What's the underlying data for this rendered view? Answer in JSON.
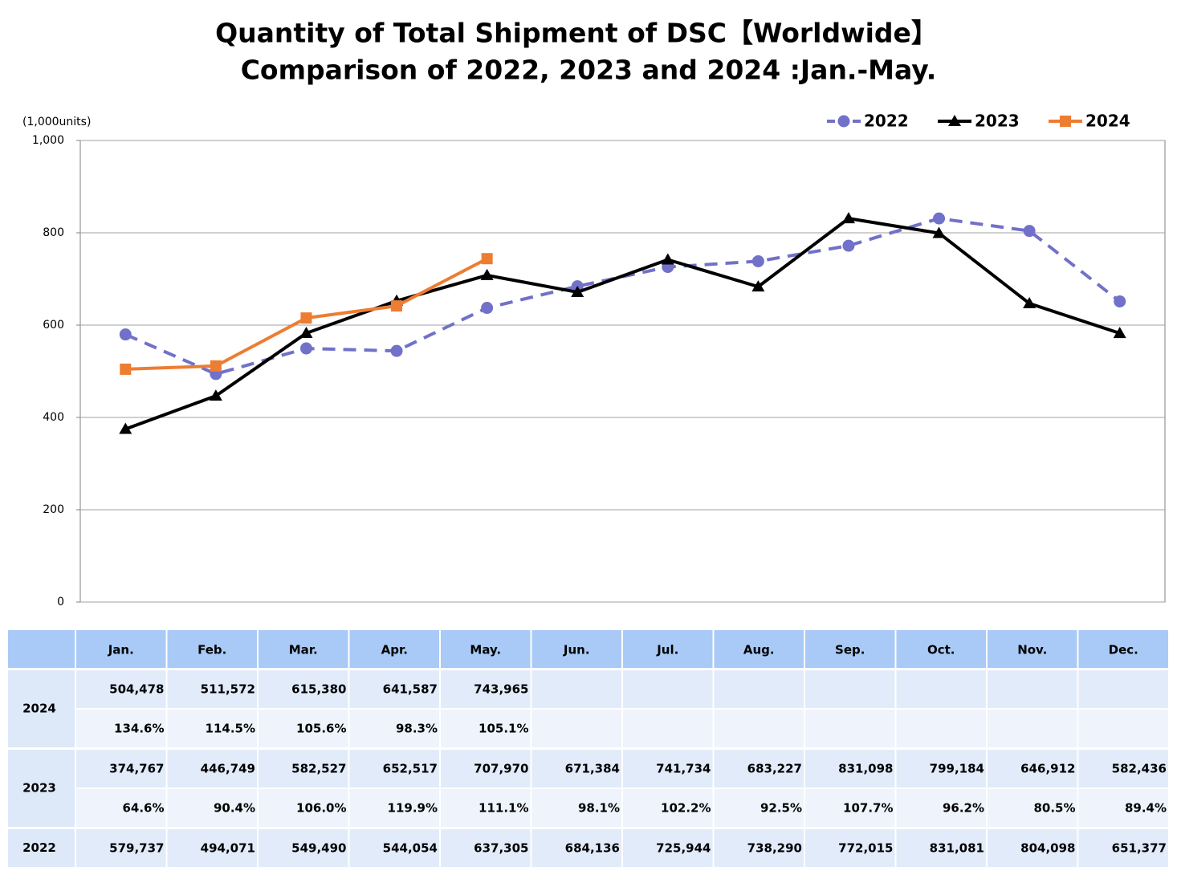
{
  "chart_data": {
    "type": "line",
    "title": "Quantity of Total Shipment of DSC【Worldwide】",
    "subtitle": "Comparison of 2022, 2023 and 2024 :Jan.-May.",
    "y_label": "(1,000units)",
    "categories": [
      "Jan.",
      "Feb.",
      "Mar.",
      "Apr.",
      "May.",
      "Jun.",
      "Jul.",
      "Aug.",
      "Sep.",
      "Oct.",
      "Nov.",
      "Dec."
    ],
    "ylim": [
      0,
      1000
    ],
    "yticks": [
      0,
      200,
      400,
      600,
      800,
      {
        "value": 1000,
        "label": "1,000"
      }
    ],
    "grid": true,
    "legend": "top-right",
    "series": [
      {
        "name": "2022",
        "color": "#7171c9",
        "dash": true,
        "marker": "circle",
        "values": [
          579.737,
          494.071,
          549.49,
          544.054,
          637.305,
          684.136,
          725.944,
          738.29,
          772.015,
          831.081,
          804.098,
          651.377
        ],
        "value_labels": [
          "579,737",
          "494,071",
          "549,490",
          "544,054",
          "637,305",
          "684,136",
          "725,944",
          "738,290",
          "772,015",
          "831,081",
          "804,098",
          "651,377"
        ]
      },
      {
        "name": "2023",
        "color": "#000000",
        "dash": false,
        "marker": "triangle",
        "values": [
          374.767,
          446.749,
          582.527,
          652.517,
          707.97,
          671.384,
          741.734,
          683.227,
          831.098,
          799.184,
          646.912,
          582.436
        ],
        "value_labels": [
          "374,767",
          "446,749",
          "582,527",
          "652,517",
          "707,970",
          "671,384",
          "741,734",
          "683,227",
          "831,098",
          "799,184",
          "646,912",
          "582,436"
        ],
        "growth_labels": [
          "64.6%",
          "90.4%",
          "106.0%",
          "119.9%",
          "111.1%",
          "98.1%",
          "102.2%",
          "92.5%",
          "107.7%",
          "96.2%",
          "80.5%",
          "89.4%"
        ]
      },
      {
        "name": "2024",
        "color": "#ed7d31",
        "dash": false,
        "marker": "square",
        "values": [
          504.478,
          511.572,
          615.38,
          641.587,
          743.965,
          null,
          null,
          null,
          null,
          null,
          null,
          null
        ],
        "value_labels": [
          "504,478",
          "511,572",
          "615,380",
          "641,587",
          "743,965",
          null,
          null,
          null,
          null,
          null,
          null,
          null
        ],
        "growth_labels": [
          "134.6%",
          "114.5%",
          "105.6%",
          "98.3%",
          "105.1%",
          null,
          null,
          null,
          null,
          null,
          null,
          null
        ]
      }
    ]
  }
}
